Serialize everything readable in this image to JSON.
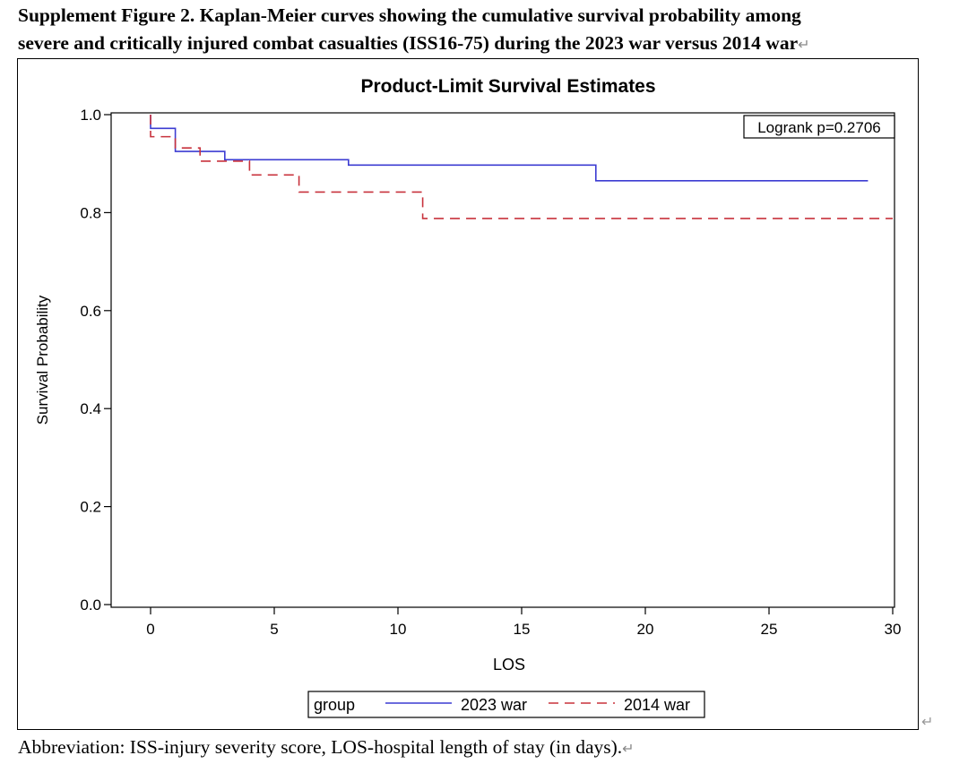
{
  "caption": {
    "line1": "Supplement Figure 2. Kaplan-Meier curves showing the cumulative survival probability among",
    "line2": "severe and critically injured combat casualties (ISS16-75) during the 2023 war versus 2014 war"
  },
  "footnote": "Abbreviation: ISS-injury severity score, LOS-hospital length of stay (in days).",
  "chart_data": {
    "type": "line",
    "subtype": "kaplan-meier step",
    "title": "Product-Limit Survival Estimates",
    "xlabel": "LOS",
    "ylabel": "Survival Probability",
    "xlim": [
      0,
      30
    ],
    "ylim": [
      0,
      1
    ],
    "xticks": [
      0,
      5,
      10,
      15,
      20,
      25,
      30
    ],
    "yticks": [
      0.0,
      0.2,
      0.4,
      0.6,
      0.8,
      1.0
    ],
    "xtick_labels": [
      "0",
      "5",
      "10",
      "15",
      "20",
      "25",
      "30"
    ],
    "ytick_labels": [
      "0.0",
      "0.2",
      "0.4",
      "0.6",
      "0.8",
      "1.0"
    ],
    "annotation": "Logrank p=0.2706",
    "annotation_placement": "top-right",
    "legend_title": "group",
    "legend_placement": "bottom-center",
    "grid": false,
    "series": [
      {
        "name": "2023 war",
        "color": "#3c3cd2",
        "dash": "solid",
        "x": [
          0,
          1,
          3,
          8,
          18,
          29
        ],
        "y": [
          0.972,
          0.925,
          0.908,
          0.897,
          0.865,
          0.865
        ]
      },
      {
        "name": "2014 war",
        "color": "#c8323c",
        "dash": "dashed",
        "x": [
          0,
          1,
          2,
          4,
          6,
          11,
          30
        ],
        "y": [
          0.955,
          0.932,
          0.905,
          0.877,
          0.842,
          0.788,
          0.788
        ]
      }
    ]
  }
}
